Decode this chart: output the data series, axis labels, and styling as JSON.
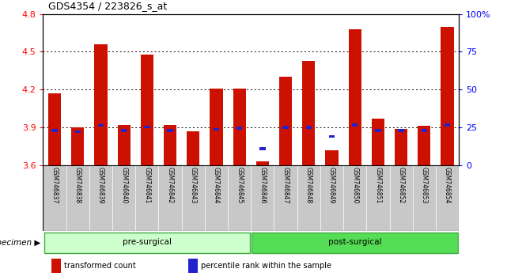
{
  "title": "GDS4354 / 223826_s_at",
  "samples": [
    "GSM746837",
    "GSM746838",
    "GSM746839",
    "GSM746840",
    "GSM746841",
    "GSM746842",
    "GSM746843",
    "GSM746844",
    "GSM746845",
    "GSM746846",
    "GSM746847",
    "GSM746848",
    "GSM746849",
    "GSM746850",
    "GSM746851",
    "GSM746852",
    "GSM746853",
    "GSM746854"
  ],
  "red_values": [
    4.17,
    3.9,
    4.56,
    3.92,
    4.48,
    3.92,
    3.87,
    4.21,
    4.21,
    3.63,
    4.3,
    4.43,
    3.72,
    4.68,
    3.97,
    3.89,
    3.91,
    4.7
  ],
  "blue_values": [
    3.875,
    3.865,
    3.915,
    3.875,
    3.905,
    3.875,
    0.0,
    3.885,
    3.895,
    3.73,
    3.9,
    3.9,
    3.83,
    3.92,
    3.875,
    3.875,
    3.875,
    3.92
  ],
  "ymin": 3.6,
  "ymax": 4.8,
  "y2min": 0,
  "y2max": 100,
  "yticks": [
    3.6,
    3.9,
    4.2,
    4.5,
    4.8
  ],
  "ytick_labels": [
    "3.6",
    "3.9",
    "4.2",
    "4.5",
    "4.8"
  ],
  "y2ticks": [
    0,
    25,
    50,
    75,
    100
  ],
  "y2tick_labels": [
    "0",
    "25",
    "50",
    "75",
    "100%"
  ],
  "grid_values": [
    3.9,
    4.2,
    4.5
  ],
  "n_pre": 9,
  "bar_color": "#cc1100",
  "blue_color": "#2222cc",
  "bar_width": 0.55,
  "pre_color": "#ccffcc",
  "post_color": "#55dd55",
  "group_labels": [
    "pre-surgical",
    "post-surgical"
  ],
  "legend_items": [
    {
      "label": "transformed count",
      "color": "#cc1100"
    },
    {
      "label": "percentile rank within the sample",
      "color": "#2222cc"
    }
  ],
  "background_color": "#ffffff",
  "tick_label_bg": "#c8c8c8"
}
